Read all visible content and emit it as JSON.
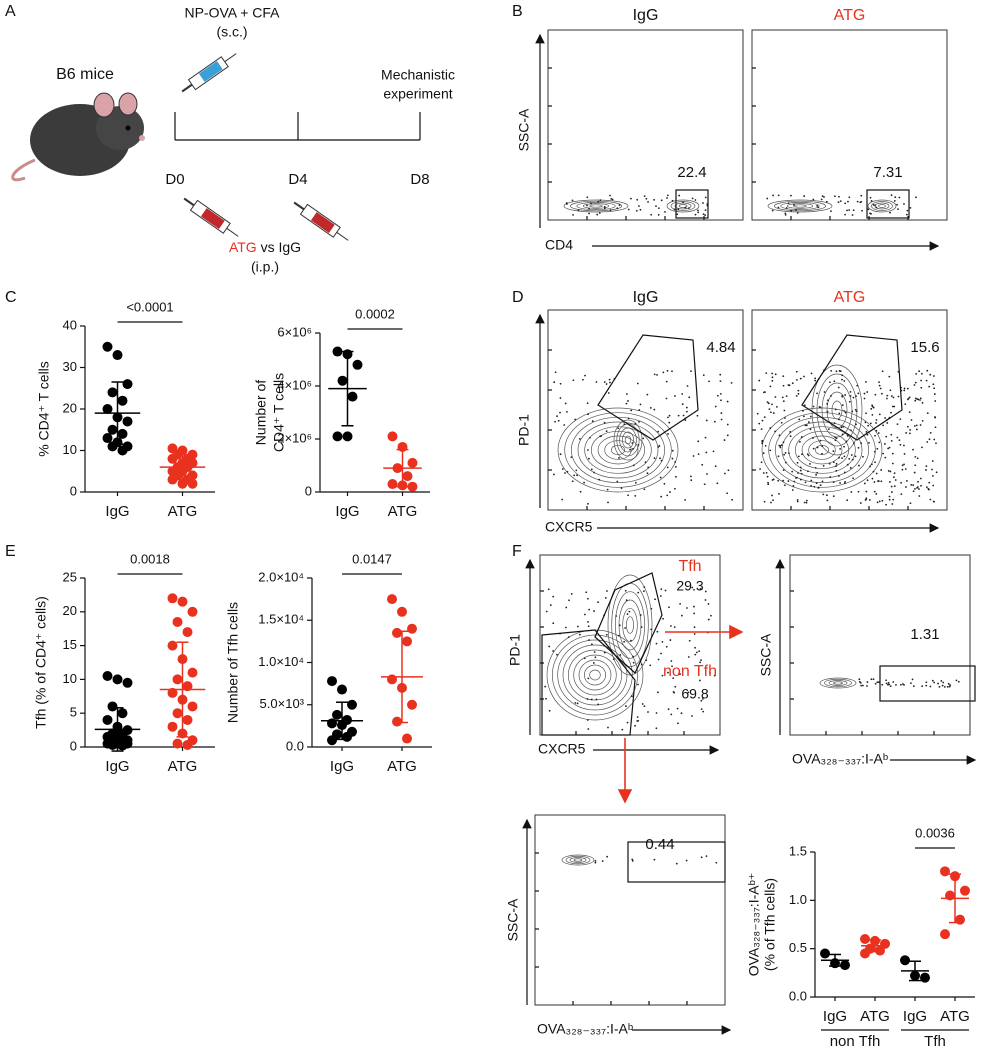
{
  "panel_labels": [
    "A",
    "B",
    "C",
    "D",
    "E",
    "F"
  ],
  "schematic": {
    "mice": "B6 mice",
    "immunization": "NP-OVA + CFA",
    "immunization_route": "(s.c.)",
    "endpoint_lines": [
      "Mechanistic",
      "experiment"
    ],
    "days": [
      "D0",
      "D4",
      "D8"
    ],
    "treatment": "ATG",
    "treatment_rest": " vs IgG",
    "treatment_route": "(i.p.)"
  },
  "flow": {
    "B": {
      "columns": [
        "IgG",
        "ATG"
      ],
      "xlabel": "CD4",
      "ylabel": "SSC-A",
      "gates": [
        22.4,
        7.31
      ]
    },
    "D": {
      "columns": [
        "IgG",
        "ATG"
      ],
      "xlabel": "CXCR5",
      "ylabel": "PD-1",
      "gates": [
        4.84,
        15.6
      ]
    },
    "F": {
      "xlabel": "CXCR5",
      "ylabel": "PD-1",
      "gates": [
        {
          "name": "Tfh",
          "value": 29.3
        },
        {
          "name": "non Tfh",
          "value": 69.8
        }
      ],
      "sub_plots": [
        {
          "xlabel": "OVA₃₂₈₋₃₃₇:I-Aᵇ",
          "ylabel": "SSC-A",
          "gate": 1.31
        },
        {
          "xlabel": "OVA₃₂₈₋₃₃₇:I-Aᵇ",
          "ylabel": "SSC-A",
          "gate": 0.44
        }
      ]
    }
  },
  "chart_data": [
    {
      "type": "dot",
      "ylabel": [
        "% CD4⁺ T cells"
      ],
      "categories": [
        "IgG",
        "ATG"
      ],
      "colors": [
        "#000000",
        "#e8321f"
      ],
      "values": [
        [
          35,
          33,
          26,
          24,
          22,
          20,
          18,
          17,
          15,
          14,
          13,
          12,
          11,
          11,
          10
        ],
        [
          10.5,
          10,
          9,
          9,
          8,
          8,
          7,
          7,
          6,
          6,
          5,
          5,
          4,
          4,
          3,
          3,
          2,
          2
        ]
      ],
      "mean": [
        19,
        6
      ],
      "sd": [
        7.5,
        3
      ],
      "p_value": "<0.0001",
      "ylim": [
        0,
        40
      ],
      "yticks": [
        0,
        10,
        20,
        30,
        40
      ]
    },
    {
      "type": "dot",
      "ylabel": [
        "Number of",
        "CD4⁺ T cells"
      ],
      "categories": [
        "IgG",
        "ATG"
      ],
      "colors": [
        "#000000",
        "#e8321f"
      ],
      "values": [
        [
          5300000,
          5200000,
          4800000,
          4200000,
          3600000,
          2100000,
          2100000
        ],
        [
          2100000,
          1700000,
          1100000,
          900000,
          600000,
          300000,
          250000,
          200000
        ]
      ],
      "mean": [
        3900000,
        900000
      ],
      "sd": [
        1400000,
        700000
      ],
      "p_value": "0.0002",
      "ylim": [
        0,
        6000000
      ],
      "yticks": [
        0,
        {
          "value": 2000000,
          "label": "2×10⁶"
        },
        {
          "value": 4000000,
          "label": "4×10⁶"
        },
        {
          "value": 6000000,
          "label": "6×10⁶"
        }
      ]
    },
    {
      "type": "dot",
      "ylabel": [
        "Tfh (% of CD4⁺ cells)"
      ],
      "categories": [
        "IgG",
        "ATG"
      ],
      "colors": [
        "#000000",
        "#e8321f"
      ],
      "values": [
        [
          10.5,
          10,
          9.5,
          6,
          5,
          4,
          3,
          2.5,
          2,
          2,
          1.5,
          1.5,
          1,
          1,
          1,
          0.5,
          0.5,
          0.5,
          0.3,
          0.2
        ],
        [
          22,
          21.5,
          20,
          18.5,
          17,
          15,
          13,
          11,
          10,
          9,
          8,
          7,
          6,
          5,
          4,
          3,
          2,
          1,
          0.5,
          0.3
        ]
      ],
      "mean": [
        2.6,
        8.5
      ],
      "sd": [
        3.2,
        7
      ],
      "p_value": "0.0018",
      "ylim": [
        0,
        25
      ],
      "yticks": [
        0,
        5,
        10,
        15,
        20,
        25
      ]
    },
    {
      "type": "dot",
      "ylabel": [
        "Number of Tfh cells"
      ],
      "categories": [
        "IgG",
        "ATG"
      ],
      "colors": [
        "#000000",
        "#e8321f"
      ],
      "values": [
        [
          7800,
          6800,
          5000,
          3800,
          3200,
          2800,
          2600,
          1800,
          1500,
          1200,
          800
        ],
        [
          17500,
          16000,
          14000,
          13500,
          12500,
          8000,
          7000,
          5000,
          3000,
          1000
        ]
      ],
      "mean": [
        3100,
        8300
      ],
      "sd": [
        2200,
        5400
      ],
      "p_value": "0.0147",
      "ylim": [
        0,
        20000
      ],
      "yticks": [
        {
          "value": 0,
          "label": "0.0"
        },
        {
          "value": 5000,
          "label": "5.0×10³"
        },
        {
          "value": 10000,
          "label": "1.0×10⁴"
        },
        {
          "value": 15000,
          "label": "1.5×10⁴"
        },
        {
          "value": 20000,
          "label": "2.0×10⁴"
        }
      ]
    },
    {
      "type": "dot",
      "ylabel": [
        "OVA₃₂₈₋₃₃₇:I-Aᵇ⁺",
        "(% of Tfh cells)"
      ],
      "categories": [
        "IgG",
        "ATG",
        "IgG",
        "ATG"
      ],
      "groups": [
        "non Tfh",
        "Tfh"
      ],
      "colors": [
        "#000000",
        "#e8321f",
        "#000000",
        "#e8321f"
      ],
      "values": [
        [
          0.45,
          0.35,
          0.33
        ],
        [
          0.6,
          0.58,
          0.55,
          0.5,
          0.48,
          0.45
        ],
        [
          0.38,
          0.22,
          0.2
        ],
        [
          1.3,
          1.25,
          1.1,
          1.05,
          0.8,
          0.65
        ]
      ],
      "mean": [
        0.38,
        0.53,
        0.27,
        1.02
      ],
      "sd": [
        0.06,
        0.06,
        0.1,
        0.25
      ],
      "p_value": "0.0036",
      "ylim": [
        0,
        1.5
      ],
      "yticks": [
        {
          "value": 0,
          "label": "0.0"
        },
        {
          "value": 0.5,
          "label": "0.5"
        },
        {
          "value": 1,
          "label": "1.0"
        },
        {
          "value": 1.5,
          "label": "1.5"
        }
      ]
    }
  ]
}
